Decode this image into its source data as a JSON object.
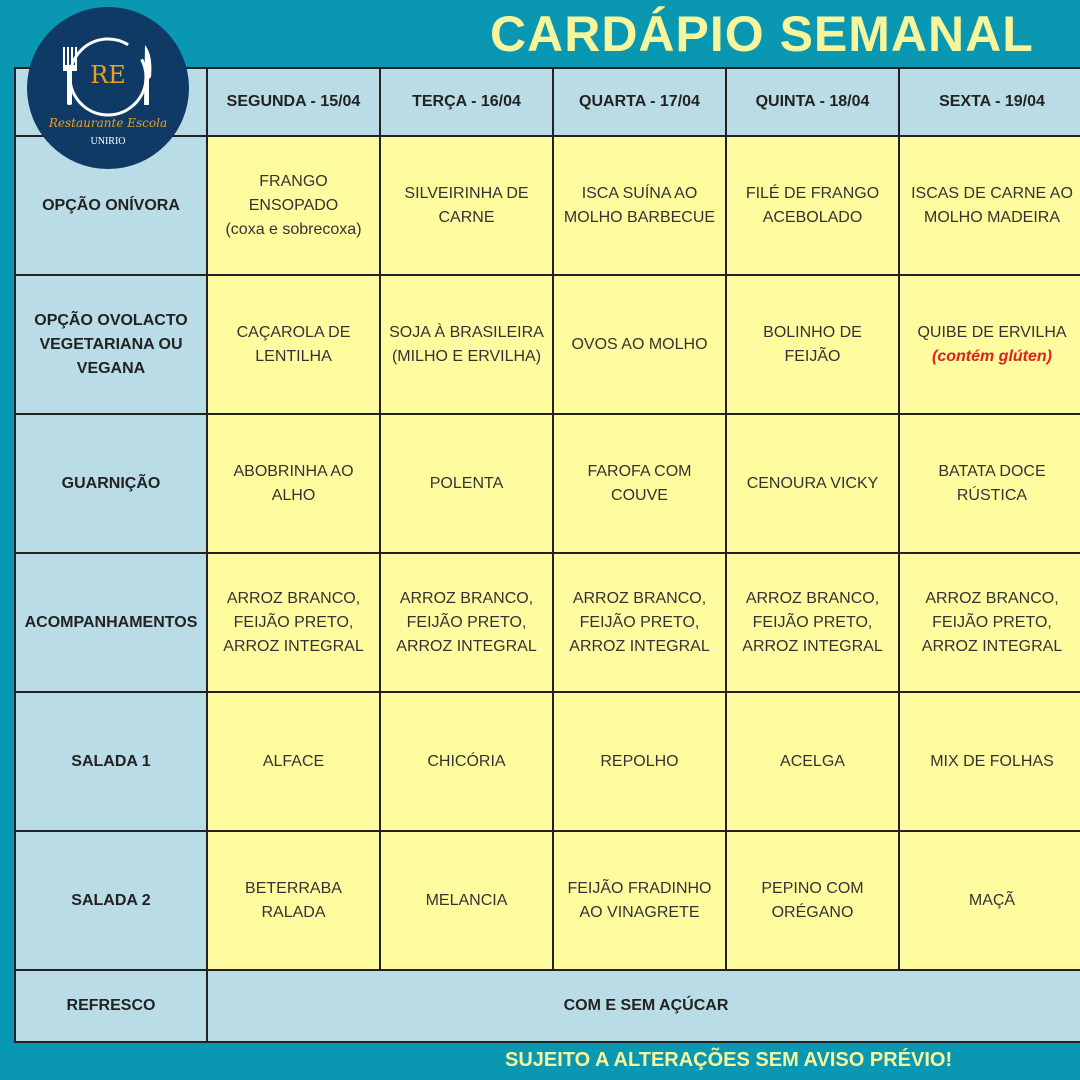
{
  "title": "CARDÁPIO SEMANAL",
  "footer": "SUJEITO A ALTERAÇÕES SEM AVISO PRÉVIO!",
  "logo": {
    "initials": "RE",
    "name": "Restaurante Escola",
    "org": "UNIRIO"
  },
  "days": [
    "SEGUNDA - 15/04",
    "TERÇA - 16/04",
    "QUARTA - 17/04",
    "QUINTA - 18/04",
    "SEXTA - 19/04"
  ],
  "rows": [
    {
      "label": "OPÇÃO ONÍVORA",
      "cells": [
        [
          "FRANGO",
          "ENSOPADO",
          "(coxa e sobrecoxa)"
        ],
        [
          "SILVEIRINHA DE",
          "CARNE"
        ],
        [
          "ISCA SUÍNA AO",
          "MOLHO BARBECUE"
        ],
        [
          "FILÉ DE FRANGO",
          "ACEBOLADO"
        ],
        [
          "ISCAS DE CARNE AO",
          "MOLHO MADEIRA"
        ]
      ]
    },
    {
      "label": "OPÇÃO OVOLACTO VEGETARIANA OU VEGANA",
      "cells": [
        [
          "CAÇAROLA DE",
          "LENTILHA"
        ],
        [
          "SOJA À BRASILEIRA",
          "(MILHO E ERVILHA)"
        ],
        [
          "OVOS AO MOLHO"
        ],
        [
          "BOLINHO DE",
          "FEIJÃO"
        ],
        [
          "QUIBE DE ERVILHA"
        ]
      ],
      "note": "(contém glúten)"
    },
    {
      "label": "GUARNIÇÃO",
      "cells": [
        [
          "ABOBRINHA AO",
          "ALHO"
        ],
        [
          "POLENTA"
        ],
        [
          "FAROFA COM",
          "COUVE"
        ],
        [
          "CENOURA VICKY"
        ],
        [
          "BATATA DOCE",
          "RÚSTICA"
        ]
      ]
    },
    {
      "label": "ACOMPANHAMENTOS",
      "cells": [
        [
          "ARROZ BRANCO,",
          "FEIJÃO PRETO,",
          "ARROZ INTEGRAL"
        ],
        [
          "ARROZ BRANCO,",
          "FEIJÃO PRETO,",
          "ARROZ INTEGRAL"
        ],
        [
          "ARROZ BRANCO,",
          "FEIJÃO PRETO,",
          "ARROZ INTEGRAL"
        ],
        [
          "ARROZ BRANCO,",
          "FEIJÃO PRETO,",
          "ARROZ INTEGRAL"
        ],
        [
          "ARROZ BRANCO,",
          "FEIJÃO PRETO,",
          "ARROZ INTEGRAL"
        ]
      ]
    },
    {
      "label": "SALADA 1",
      "cells": [
        [
          "ALFACE"
        ],
        [
          "CHICÓRIA"
        ],
        [
          "REPOLHO"
        ],
        [
          "ACELGA"
        ],
        [
          "MIX DE FOLHAS"
        ]
      ]
    },
    {
      "label": "SALADA 2",
      "cells": [
        [
          "BETERRABA",
          "RALADA"
        ],
        [
          "MELANCIA"
        ],
        [
          "FEIJÃO FRADINHO",
          "AO VINAGRETE"
        ],
        [
          "PEPINO COM",
          "ORÉGANO"
        ],
        [
          "MAÇÃ"
        ]
      ]
    }
  ],
  "refresco": {
    "label": "REFRESCO",
    "value": "COM E SEM AÇÚCAR"
  }
}
